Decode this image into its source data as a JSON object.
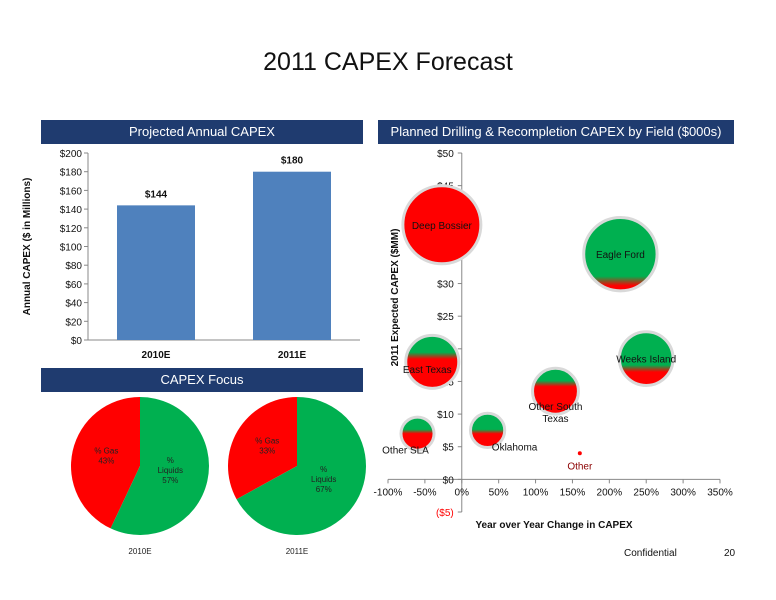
{
  "page": {
    "title": "2011 CAPEX Forecast",
    "confidential": "Confidential",
    "page_number": "20"
  },
  "banners": {
    "bar": "Projected Annual CAPEX",
    "bubble": "Planned Drilling & Recompletion CAPEX by Field ($000s)",
    "pie": "CAPEX Focus"
  },
  "colors": {
    "bar": "#4f81bd",
    "gas": "#ff0000",
    "liquids": "#00b050",
    "banner": "#1f3b6f"
  },
  "chart_data": [
    {
      "type": "bar",
      "title": "Projected Annual CAPEX",
      "ylabel": "Annual CAPEX ($ in Millions)",
      "categories": [
        "2010E",
        "2011E"
      ],
      "values": [
        144,
        180
      ],
      "value_labels": [
        "$144",
        "$180"
      ],
      "ylim": [
        0,
        200
      ],
      "yticks": [
        0,
        20,
        40,
        60,
        80,
        100,
        120,
        140,
        160,
        180,
        200
      ],
      "ytick_labels": [
        "$0",
        "$20",
        "$40",
        "$60",
        "$80",
        "$100",
        "$120",
        "$140",
        "$160",
        "$180",
        "$200"
      ],
      "grid": false
    },
    {
      "type": "scatter",
      "title": "Planned Drilling & Recompletion CAPEX by Field ($000s)",
      "xlabel": "Year over Year Change in CAPEX",
      "ylabel": "2011 Expected CAPEX ($MM)",
      "xlim": [
        -100,
        350
      ],
      "ylim": [
        -5,
        50
      ],
      "xticks": [
        -100,
        -50,
        0,
        50,
        100,
        150,
        200,
        250,
        300,
        350
      ],
      "xtick_labels": [
        "-100%",
        "-50%",
        "0%",
        "50%",
        "100%",
        "150%",
        "200%",
        "250%",
        "300%",
        "350%"
      ],
      "yticks": [
        -5,
        0,
        5,
        10,
        15,
        20,
        25,
        30,
        35,
        40,
        45,
        50
      ],
      "ytick_labels": [
        "($5)",
        "$0",
        "$5",
        "$10",
        "$15",
        "$20",
        "$25",
        "$30",
        "$35",
        "$40",
        "$45",
        "$50"
      ],
      "points": [
        {
          "label": "Deep Bossier",
          "x": -27,
          "y": 39,
          "size": 39,
          "liquids_pct": 0
        },
        {
          "label": "Eagle Ford",
          "x": 215,
          "y": 34.5,
          "size": 34.5,
          "liquids_pct": 88
        },
        {
          "label": "East Texas",
          "x": -40,
          "y": 18,
          "size": 18,
          "liquids_pct": 40
        },
        {
          "label": "Weeks Island",
          "x": 250,
          "y": 18.5,
          "size": 18.5,
          "liquids_pct": 70
        },
        {
          "label": "Other South Texas",
          "x": 127,
          "y": 13.5,
          "size": 13.5,
          "liquids_pct": 35
        },
        {
          "label": "Oklahoma",
          "x": 35,
          "y": 7.5,
          "size": 7.5,
          "liquids_pct": 55
        },
        {
          "label": "Other SLA",
          "x": -60,
          "y": 7,
          "size": 7,
          "liquids_pct": 45
        },
        {
          "label": "Other",
          "x": 160,
          "y": 4,
          "size": 4,
          "liquids_pct": 0
        }
      ]
    },
    {
      "type": "pie",
      "title": "2010E",
      "slices": [
        {
          "name": "% Gas",
          "value": 43,
          "label": "43%"
        },
        {
          "name": "% Liquids",
          "value": 57,
          "label": "57%"
        }
      ]
    },
    {
      "type": "pie",
      "title": "2011E",
      "slices": [
        {
          "name": "% Gas",
          "value": 33,
          "label": "33%"
        },
        {
          "name": "% Liquids",
          "value": 67,
          "label": "67%"
        }
      ]
    }
  ]
}
